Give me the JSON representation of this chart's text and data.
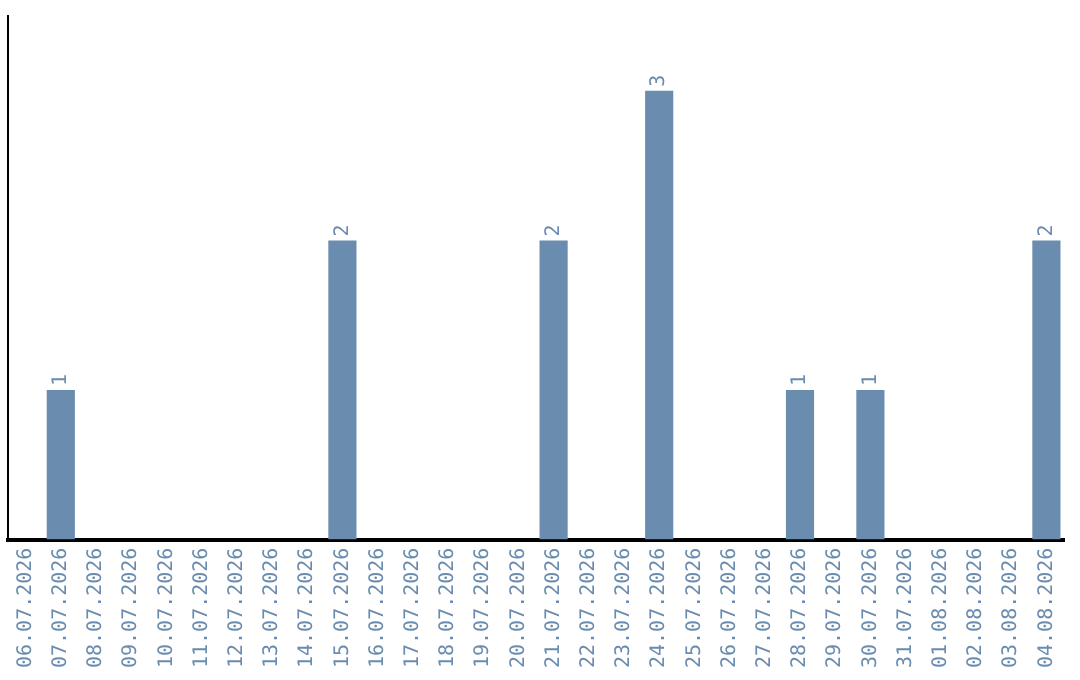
{
  "chart_data": {
    "type": "bar",
    "categories": [
      "06.07.2026",
      "07.07.2026",
      "08.07.2026",
      "09.07.2026",
      "10.07.2026",
      "11.07.2026",
      "12.07.2026",
      "13.07.2026",
      "14.07.2026",
      "15.07.2026",
      "16.07.2026",
      "17.07.2026",
      "18.07.2026",
      "19.07.2026",
      "20.07.2026",
      "21.07.2026",
      "22.07.2026",
      "23.07.2026",
      "24.07.2026",
      "25.07.2026",
      "26.07.2026",
      "27.07.2026",
      "28.07.2026",
      "29.07.2026",
      "30.07.2026",
      "31.07.2026",
      "01.08.2026",
      "02.08.2026",
      "03.08.2026",
      "04.08.2026"
    ],
    "values": [
      0,
      1,
      0,
      0,
      0,
      0,
      0,
      0,
      0,
      2,
      0,
      0,
      0,
      0,
      0,
      2,
      0,
      0,
      3,
      0,
      0,
      0,
      1,
      0,
      1,
      0,
      0,
      0,
      0,
      2
    ],
    "value_labels": [
      null,
      "1",
      null,
      null,
      null,
      null,
      null,
      null,
      null,
      "2",
      null,
      null,
      null,
      null,
      null,
      "2",
      null,
      null,
      "3",
      null,
      null,
      null,
      "1",
      null,
      "1",
      null,
      null,
      null,
      null,
      "2"
    ],
    "color": "#6a8caf",
    "grid": false,
    "legend": false
  }
}
